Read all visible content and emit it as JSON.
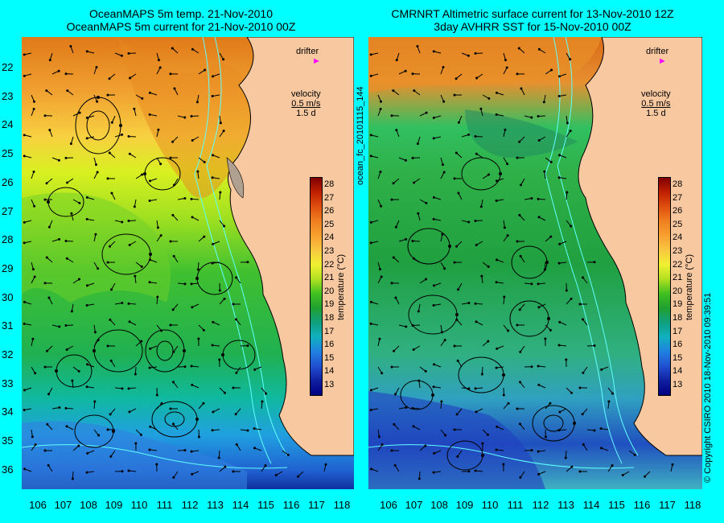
{
  "left_panel": {
    "title_line1": "OceanMAPS 5m temp. 21-Nov-2010",
    "title_line2": "OceanMAPS 5m current for 21-Nov-2010 00Z"
  },
  "right_panel": {
    "title_line1": "CMRNRT Altimetric surface current for 13-Nov-2010 12Z",
    "title_line2": "3day AVHRR SST for 15-Nov-2010 00Z"
  },
  "legend": {
    "drifter": "drifter",
    "velocity": "velocity",
    "speed": "0.5 m/s",
    "duration": "1.5 d"
  },
  "colorbar": {
    "title": "temperature (°C)",
    "labels": [
      "28",
      "27",
      "26",
      "25",
      "24",
      "23",
      "22",
      "21",
      "20",
      "19",
      "18",
      "17",
      "16",
      "15",
      "14",
      "13"
    ]
  },
  "lat_ticks": [
    "22",
    "23",
    "24",
    "25",
    "26",
    "27",
    "28",
    "29",
    "30",
    "31",
    "32",
    "33",
    "34",
    "35",
    "36"
  ],
  "lon_ticks": [
    "106",
    "107",
    "108",
    "109",
    "110",
    "111",
    "112",
    "113",
    "114",
    "115",
    "116",
    "117",
    "118"
  ],
  "side_notes": {
    "product_id": "ocean_fc_20101115_144",
    "copyright": "© Copyright CSIRO 2010   18-Nov-2010 09:39:51"
  },
  "colors": {
    "land": "#f8c8a0",
    "background": "#00ffff",
    "drifter_marker": "#ff00ff"
  }
}
